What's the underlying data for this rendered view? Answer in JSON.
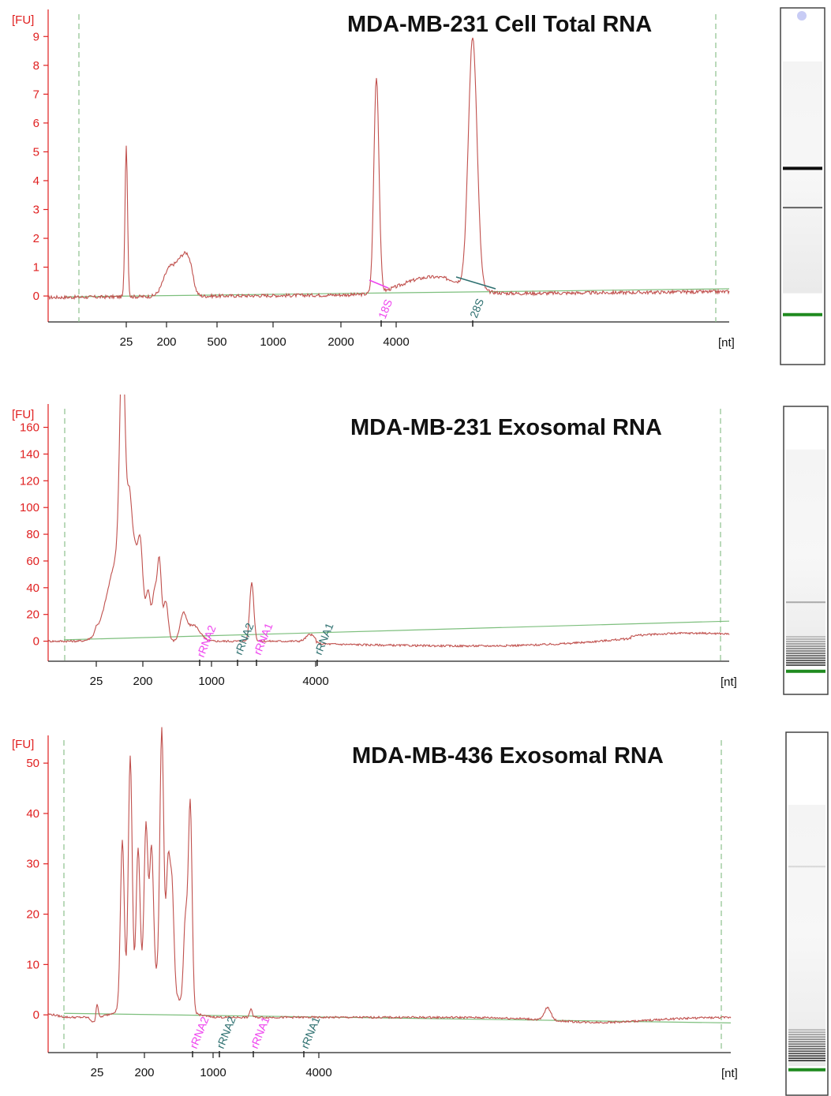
{
  "chart_data": [
    {
      "type": "line",
      "title": "MDA-MB-231 Cell Total RNA",
      "ylabel": "[FU]",
      "xlabel": "[nt]",
      "ylim": [
        -0.9,
        9.5
      ],
      "yticks": [
        0,
        1,
        2,
        3,
        4,
        5,
        6,
        7,
        8,
        9
      ],
      "xtick_labels": [
        "25",
        "200",
        "500",
        "1000",
        "2000",
        "4000"
      ],
      "peaks": [
        {
          "label": "",
          "y": 5.3
        },
        {
          "label": "",
          "y": 1.2
        },
        {
          "label": "18S",
          "y": 7.5
        },
        {
          "label": "28S",
          "y": 8.7
        }
      ],
      "peak_labels": [
        "18S",
        "28S"
      ],
      "colors": {
        "trace": "#c0504d",
        "baseline": "#7dbf7d",
        "axis": "#e02020",
        "label1": "#ee44ee",
        "label2": "#2e7070"
      }
    },
    {
      "type": "line",
      "title": "MDA-MB-231 Exosomal RNA",
      "ylabel": "[FU]",
      "xlabel": "[nt]",
      "ylim": [
        -15,
        168
      ],
      "yticks": [
        0,
        20,
        40,
        60,
        80,
        100,
        120,
        140,
        160
      ],
      "xtick_labels": [
        "25",
        "200",
        "1000",
        "4000"
      ],
      "peaks": [
        {
          "label": "",
          "y": 157
        },
        {
          "label": "",
          "y": 102
        },
        {
          "label": "",
          "y": 44
        }
      ],
      "peak_labels": [
        "rRNA2",
        "rRNA2",
        "rRNA1",
        "rRNA1"
      ],
      "colors": {
        "trace": "#c0504d",
        "baseline": "#7dbf7d",
        "axis": "#e02020",
        "label1": "#ee44ee",
        "label2": "#2e7070"
      }
    },
    {
      "type": "line",
      "title": "MDA-MB-436 Exosomal RNA",
      "ylabel": "[FU]",
      "xlabel": "[nt]",
      "ylim": [
        -7.5,
        53
      ],
      "yticks": [
        0,
        10,
        20,
        30,
        40,
        50
      ],
      "xtick_labels": [
        "25",
        "200",
        "1000",
        "4000"
      ],
      "peaks": [
        {
          "label": "",
          "y": 48
        },
        {
          "label": "",
          "y": 50
        },
        {
          "label": "",
          "y": 41
        },
        {
          "label": "",
          "y": 2.5
        }
      ],
      "peak_labels": [
        "rRNA2",
        "rRNA2",
        "rRNA1",
        "rRNA1"
      ],
      "colors": {
        "trace": "#c0504d",
        "baseline": "#7dbf7d",
        "axis": "#e02020",
        "label1": "#ee44ee",
        "label2": "#2e7070"
      }
    }
  ],
  "gel_lanes": [
    {
      "bands": [
        {
          "pos": 0.45,
          "dark": 0.95
        },
        {
          "pos": 0.56,
          "dark": 0.6
        }
      ],
      "marker_pos": 0.86,
      "smear": [
        0.15,
        0.8
      ],
      "dot": true
    },
    {
      "bands": [
        {
          "pos": 0.68,
          "dark": 0.3
        }
      ],
      "marker_pos": 0.92,
      "smear": [
        0.15,
        0.9
      ],
      "dot": false
    },
    {
      "bands": [
        {
          "pos": 0.37,
          "dark": 0.12
        }
      ],
      "marker_pos": 0.93,
      "smear": [
        0.2,
        0.92
      ],
      "dot": false
    }
  ]
}
